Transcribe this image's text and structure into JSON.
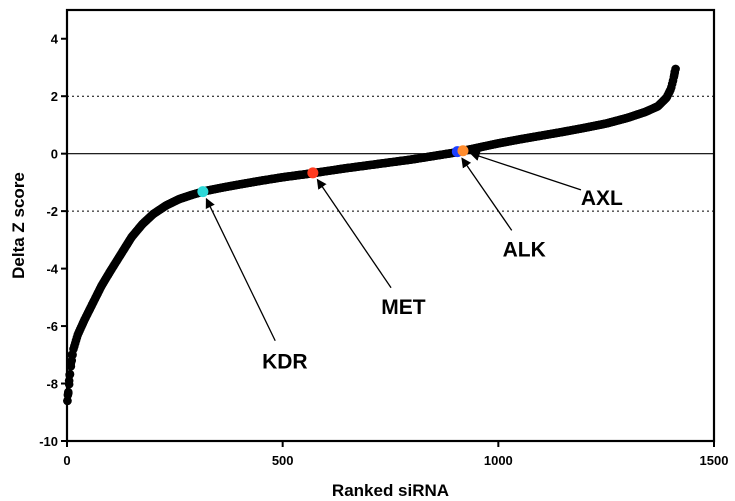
{
  "chart_data": {
    "type": "scatter",
    "title": "",
    "xlabel": "Ranked siRNA",
    "ylabel": "Delta Z score",
    "xlim": [
      0,
      1500
    ],
    "ylim": [
      -10,
      5
    ],
    "xticks": [
      0,
      500,
      1000,
      1500
    ],
    "yticks": [
      -10,
      -8,
      -6,
      -4,
      -2,
      0,
      2,
      4
    ],
    "grid": false,
    "reference_lines": [
      {
        "y": 2,
        "style": "dotted"
      },
      {
        "y": -2,
        "style": "dotted"
      },
      {
        "y": 0,
        "style": "solid"
      }
    ],
    "curve_anchors": [
      [
        1,
        -8.6
      ],
      [
        4,
        -8.2
      ],
      [
        8,
        -7.5
      ],
      [
        15,
        -6.8
      ],
      [
        25,
        -6.3
      ],
      [
        40,
        -5.8
      ],
      [
        60,
        -5.2
      ],
      [
        80,
        -4.6
      ],
      [
        100,
        -4.1
      ],
      [
        125,
        -3.5
      ],
      [
        150,
        -2.9
      ],
      [
        175,
        -2.45
      ],
      [
        200,
        -2.1
      ],
      [
        230,
        -1.8
      ],
      [
        260,
        -1.58
      ],
      [
        290,
        -1.43
      ],
      [
        320,
        -1.3
      ],
      [
        360,
        -1.18
      ],
      [
        400,
        -1.07
      ],
      [
        450,
        -0.94
      ],
      [
        500,
        -0.82
      ],
      [
        550,
        -0.72
      ],
      [
        600,
        -0.61
      ],
      [
        650,
        -0.5
      ],
      [
        700,
        -0.4
      ],
      [
        750,
        -0.3
      ],
      [
        800,
        -0.2
      ],
      [
        850,
        -0.08
      ],
      [
        900,
        0.04
      ],
      [
        950,
        0.2
      ],
      [
        1000,
        0.36
      ],
      [
        1050,
        0.5
      ],
      [
        1100,
        0.63
      ],
      [
        1150,
        0.76
      ],
      [
        1200,
        0.9
      ],
      [
        1250,
        1.05
      ],
      [
        1300,
        1.25
      ],
      [
        1340,
        1.45
      ],
      [
        1370,
        1.65
      ],
      [
        1390,
        1.95
      ],
      [
        1400,
        2.25
      ],
      [
        1406,
        2.6
      ],
      [
        1410,
        2.9
      ]
    ],
    "highlighted_points": [
      {
        "name": "KDR",
        "x": 315,
        "y": -1.32,
        "color": "#2ed8d8"
      },
      {
        "name": "MET",
        "x": 570,
        "y": -0.67,
        "color": "#ff3b1f"
      },
      {
        "name": "ALK",
        "x": 905,
        "y": 0.07,
        "color": "#1c3fff"
      },
      {
        "name": "AXL",
        "x": 918,
        "y": 0.1,
        "color": "#ff8c2e"
      }
    ],
    "annotations": [
      {
        "text": "KDR",
        "label_x": 505,
        "label_y": -7.2,
        "arrow_to_x": 315,
        "arrow_to_y": -1.32
      },
      {
        "text": "MET",
        "label_x": 780,
        "label_y": -5.3,
        "arrow_to_x": 570,
        "arrow_to_y": -0.67
      },
      {
        "text": "ALK",
        "label_x": 1060,
        "label_y": -3.3,
        "arrow_to_x": 905,
        "arrow_to_y": 0.07
      },
      {
        "text": "AXL",
        "label_x": 1240,
        "label_y": -1.5,
        "arrow_to_x": 918,
        "arrow_to_y": 0.1
      }
    ],
    "colors": {
      "points": "#000000",
      "axis": "#000000"
    }
  }
}
